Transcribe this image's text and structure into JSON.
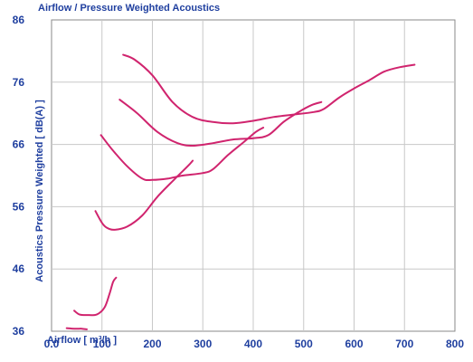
{
  "chart_data": {
    "type": "line",
    "title": "Airflow / Pressure Weighted Acoustics",
    "xlabel": "Airflow [ m³/h ]",
    "ylabel": "Acoustics Pressure Weighted [ dB(A) ]",
    "xlim": [
      0,
      800
    ],
    "ylim": [
      36,
      86
    ],
    "x_ticks": [
      "0.0",
      "100",
      "200",
      "300",
      "400",
      "500",
      "600",
      "700",
      "800"
    ],
    "y_ticks": [
      "36",
      "46",
      "56",
      "66",
      "76",
      "86"
    ],
    "x_tick_values": [
      0,
      100,
      200,
      300,
      400,
      500,
      600,
      700,
      800
    ],
    "y_tick_values": [
      36,
      46,
      56,
      66,
      76,
      86
    ],
    "grid": true,
    "line_color": "#d0246e",
    "axis_text_color": "#1f3f9f",
    "series": [
      {
        "points": [
          [
            142,
            80.4
          ],
          [
            165,
            79.6
          ],
          [
            200,
            77.1
          ],
          [
            240,
            72.8
          ],
          [
            280,
            70.4
          ],
          [
            320,
            69.6
          ],
          [
            360,
            69.4
          ],
          [
            400,
            69.8
          ],
          [
            440,
            70.4
          ],
          [
            480,
            70.8
          ],
          [
            520,
            71.2
          ],
          [
            540,
            71.7
          ],
          [
            570,
            73.5
          ],
          [
            600,
            75.0
          ],
          [
            630,
            76.3
          ],
          [
            660,
            77.7
          ],
          [
            690,
            78.4
          ],
          [
            720,
            78.8
          ]
        ]
      },
      {
        "points": [
          [
            135,
            73.2
          ],
          [
            170,
            71.0
          ],
          [
            210,
            68.0
          ],
          [
            250,
            66.2
          ],
          [
            280,
            65.8
          ],
          [
            320,
            66.2
          ],
          [
            360,
            66.8
          ],
          [
            400,
            67.0
          ],
          [
            430,
            67.5
          ],
          [
            460,
            69.6
          ],
          [
            490,
            71.2
          ],
          [
            515,
            72.3
          ],
          [
            535,
            72.8
          ]
        ]
      },
      {
        "points": [
          [
            98,
            67.5
          ],
          [
            120,
            65.2
          ],
          [
            150,
            62.5
          ],
          [
            180,
            60.5
          ],
          [
            200,
            60.3
          ],
          [
            230,
            60.5
          ],
          [
            260,
            61.0
          ],
          [
            300,
            61.4
          ],
          [
            320,
            62.0
          ],
          [
            350,
            64.3
          ],
          [
            380,
            66.3
          ],
          [
            405,
            68.0
          ],
          [
            420,
            68.7
          ]
        ]
      },
      {
        "points": [
          [
            87,
            55.3
          ],
          [
            100,
            53.4
          ],
          [
            110,
            52.6
          ],
          [
            125,
            52.3
          ],
          [
            150,
            52.8
          ],
          [
            180,
            54.6
          ],
          [
            210,
            57.6
          ],
          [
            245,
            60.5
          ],
          [
            270,
            62.5
          ],
          [
            280,
            63.4
          ]
        ]
      },
      {
        "points": [
          [
            45,
            39.3
          ],
          [
            55,
            38.7
          ],
          [
            70,
            38.6
          ],
          [
            90,
            38.7
          ],
          [
            105,
            39.8
          ],
          [
            115,
            42.0
          ],
          [
            122,
            43.9
          ],
          [
            128,
            44.6
          ]
        ]
      },
      {
        "points": [
          [
            30,
            36.5
          ],
          [
            45,
            36.4
          ],
          [
            60,
            36.4
          ],
          [
            70,
            36.3
          ]
        ]
      }
    ]
  }
}
